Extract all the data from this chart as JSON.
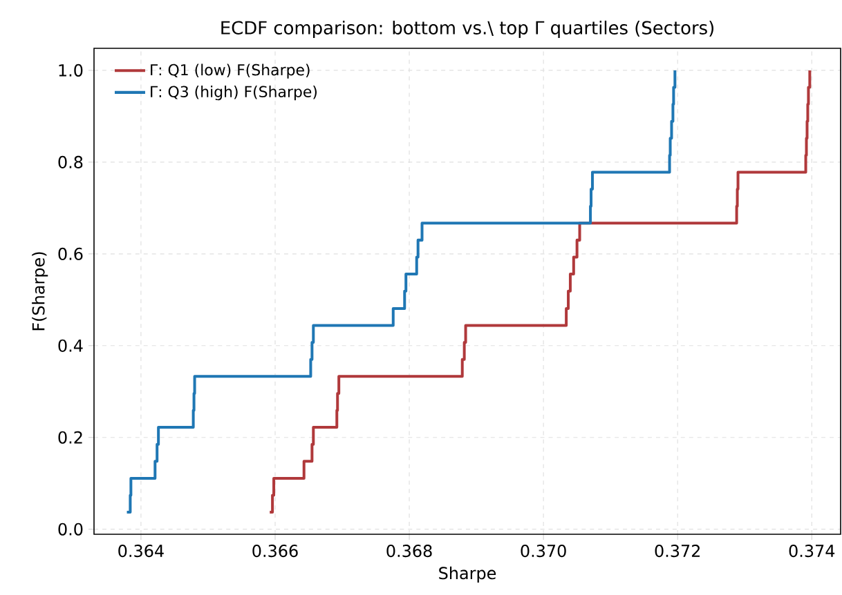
{
  "chart_data": {
    "type": "step",
    "title": "ECDF comparison: bottom vs.\\ top Γ quartiles (Sectors)",
    "xlabel": "Sharpe",
    "ylabel": "F(Sharpe)",
    "xlim": [
      0.3633,
      0.37443
    ],
    "ylim": [
      -0.011,
      1.048
    ],
    "xticks": [
      0.364,
      0.366,
      0.368,
      {
        "value": 0.37,
        "label": "0.370"
      },
      0.372,
      0.374
    ],
    "yticks": [
      {
        "value": 0,
        "label": "0.0"
      },
      0.2,
      0.4,
      0.6,
      0.8,
      {
        "value": 1,
        "label": "1.0"
      }
    ],
    "grid": true,
    "legend": "top left",
    "marker": "none",
    "line_style": "solid",
    "series": [
      {
        "name": "Γ: Q1 (low)  F(Sharpe)",
        "color": "#b0393b",
        "x": [
          0.36592,
          0.36596,
          0.36598,
          0.36643,
          0.36655,
          0.36657,
          0.36692,
          0.36693,
          0.36695,
          0.36879,
          0.36882,
          0.36884,
          0.37034,
          0.37037,
          0.3704,
          0.37045,
          0.3705,
          0.37054,
          0.37288,
          0.37289,
          0.3729,
          0.37391,
          0.37392,
          0.37393,
          0.37394,
          0.37395,
          0.37397
        ],
        "values": [
          0.037,
          0.074,
          0.111,
          0.148,
          0.185,
          0.222,
          0.259,
          0.296,
          0.333,
          0.37,
          0.407,
          0.444,
          0.481,
          0.519,
          0.556,
          0.593,
          0.63,
          0.667,
          0.704,
          0.741,
          0.778,
          0.815,
          0.852,
          0.889,
          0.926,
          0.963,
          1.0
        ]
      },
      {
        "name": "Γ: Q3 (high)  F(Sharpe)",
        "color": "#1f77b4",
        "x": [
          0.36379,
          0.36384,
          0.36385,
          0.36421,
          0.36424,
          0.36426,
          0.36478,
          0.36479,
          0.3648,
          0.36653,
          0.36655,
          0.36657,
          0.36776,
          0.36793,
          0.36795,
          0.36811,
          0.36813,
          0.36819,
          0.3707,
          0.37071,
          0.37073,
          0.37188,
          0.37189,
          0.37191,
          0.37193,
          0.37194,
          0.37196
        ],
        "values": [
          0.037,
          0.074,
          0.111,
          0.148,
          0.185,
          0.222,
          0.259,
          0.296,
          0.333,
          0.37,
          0.407,
          0.444,
          0.481,
          0.519,
          0.556,
          0.593,
          0.63,
          0.667,
          0.704,
          0.741,
          0.778,
          0.815,
          0.852,
          0.889,
          0.926,
          0.963,
          1.0
        ]
      }
    ]
  }
}
